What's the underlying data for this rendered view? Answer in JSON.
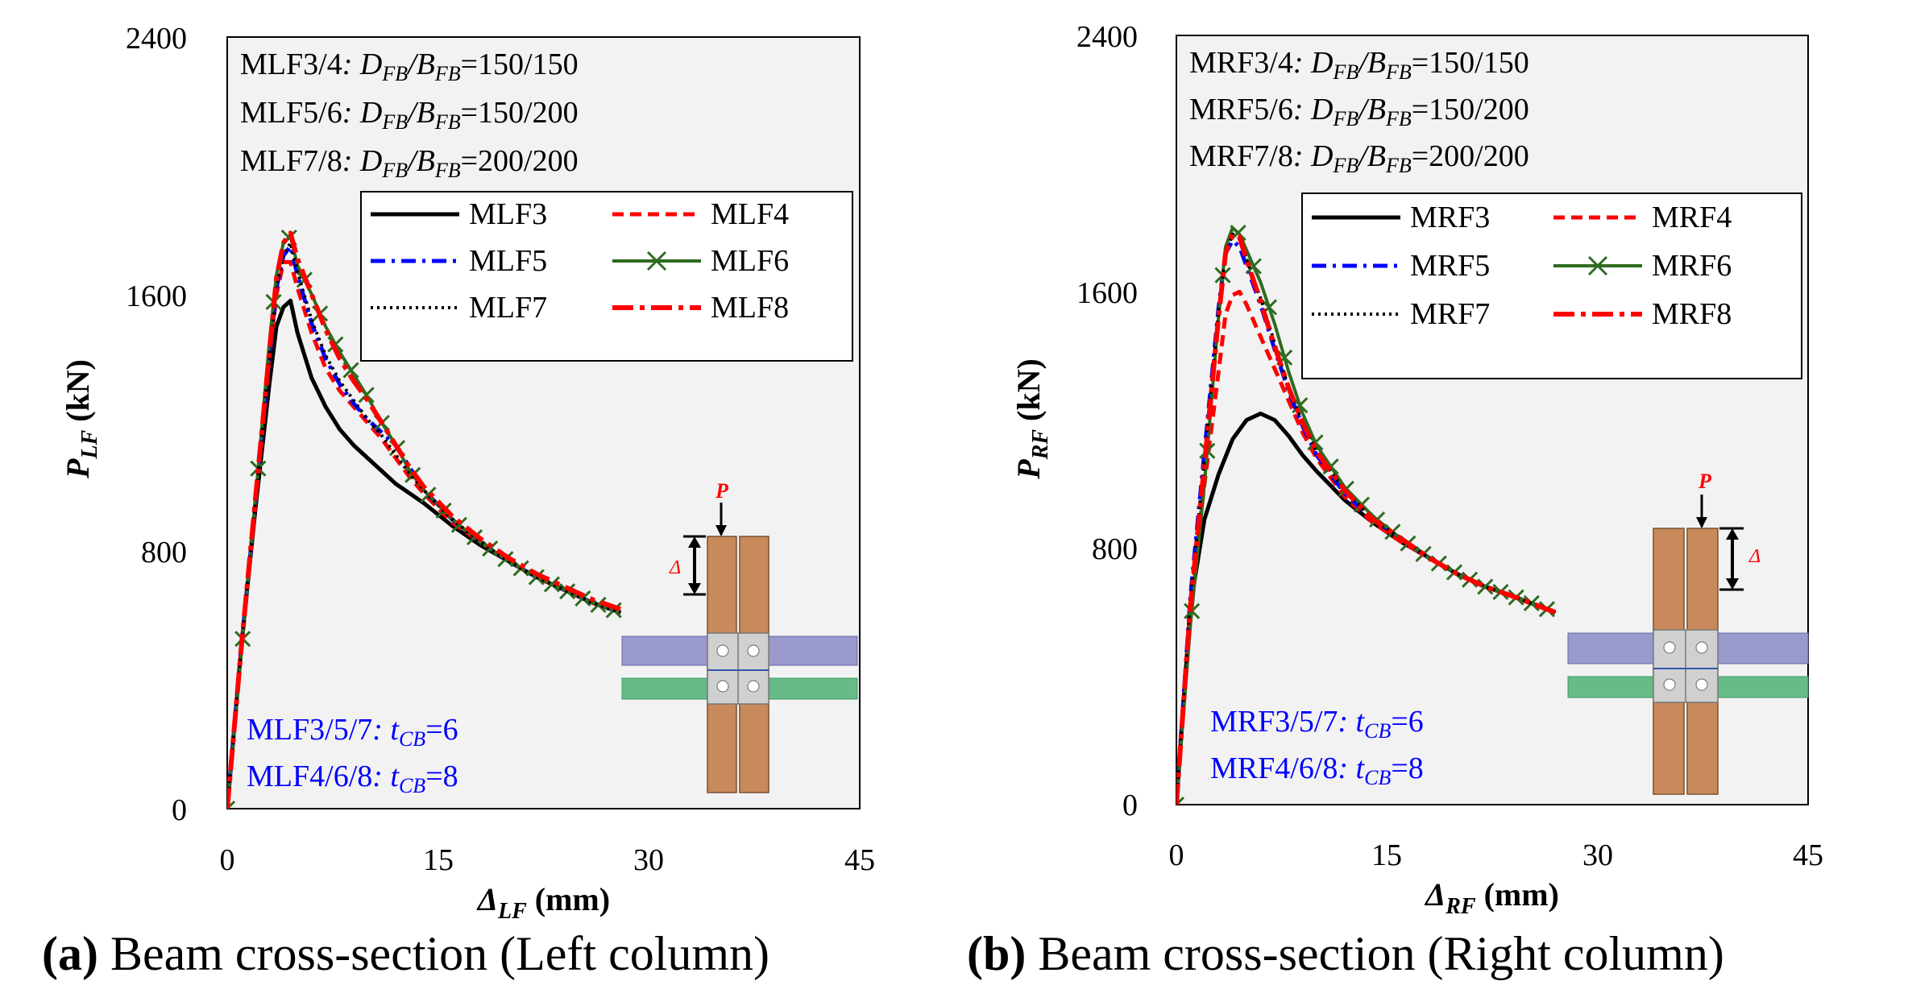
{
  "colors": {
    "black": "#000000",
    "red": "#ff0000",
    "blue": "#0000ff",
    "green": "#2e6b1f",
    "plot_bg": "#f2f2f2",
    "column": "#c98a5b",
    "beam_top": "#9999cc",
    "beam_bottom": "#66bb88",
    "plate": "#d0d0d0"
  },
  "captions": [
    {
      "label": "(a)",
      "text": " Beam cross-section (Left column)"
    },
    {
      "label": "(b)",
      "text": " Beam cross-section (Right column)"
    }
  ],
  "chart_data": [
    {
      "type": "line",
      "xlim": [
        0,
        45
      ],
      "ylim": [
        0,
        2400
      ],
      "xticks": [
        "0",
        "15",
        "30",
        "45"
      ],
      "yticks": [
        "0",
        "800",
        "1600",
        "2400"
      ],
      "xlabel": {
        "sym": "Δ",
        "sub": "LF",
        "unit": " (mm)"
      },
      "ylabel": {
        "sym": "P",
        "sub": "LF",
        "unit": " (kN)"
      },
      "info_lines": [
        {
          "name": "MLF3/4",
          "sep": ": ",
          "d": "D",
          "dsub": "FB",
          "slash": "/",
          "b": "B",
          "bsub": "FB",
          "val": "=150/150"
        },
        {
          "name": "MLF5/6",
          "sep": ": ",
          "d": "D",
          "dsub": "FB",
          "slash": "/",
          "b": "B",
          "bsub": "FB",
          "val": "=150/200"
        },
        {
          "name": "MLF7/8",
          "sep": ": ",
          "d": "D",
          "dsub": "FB",
          "slash": "/",
          "b": "B",
          "bsub": "FB",
          "val": "=200/200"
        }
      ],
      "thickness_lines": [
        {
          "name": "MLF3/5/7",
          "sep": ": ",
          "t": "t",
          "tsub": "CB",
          "val": "=6"
        },
        {
          "name": "MLF4/6/8",
          "sep": ": ",
          "t": "t",
          "tsub": "CB",
          "val": "=8"
        }
      ],
      "load_label": "P",
      "disp_label": "Δ",
      "series": [
        {
          "name": "MLF3",
          "style": "solid",
          "color": "black",
          "x": [
            0,
            1,
            2,
            3,
            3.5,
            4.0,
            4.5,
            5,
            6,
            7,
            8,
            9,
            10,
            11,
            12,
            13,
            14,
            16,
            18,
            20,
            22,
            24,
            26,
            28
          ],
          "y": [
            0,
            500,
            930,
            1320,
            1500,
            1560,
            1580,
            1480,
            1340,
            1250,
            1180,
            1130,
            1090,
            1050,
            1010,
            980,
            950,
            880,
            820,
            770,
            720,
            680,
            640,
            610
          ]
        },
        {
          "name": "MLF4",
          "style": "dashed",
          "color": "red",
          "x": [
            0,
            1,
            2,
            3,
            3.5,
            4.0,
            4.5,
            5,
            6,
            7,
            8,
            9,
            10,
            11,
            12,
            13,
            14,
            16,
            18,
            20,
            22,
            24,
            26,
            28
          ],
          "y": [
            0,
            500,
            950,
            1400,
            1600,
            1700,
            1700,
            1620,
            1480,
            1370,
            1300,
            1250,
            1200,
            1150,
            1090,
            1030,
            980,
            890,
            830,
            770,
            720,
            680,
            640,
            610
          ]
        },
        {
          "name": "MLF5",
          "style": "dashdot",
          "color": "blue",
          "x": [
            0,
            1,
            2,
            3,
            3.5,
            4.0,
            4.5,
            5,
            6,
            7,
            8,
            9,
            10,
            11,
            12,
            13,
            14,
            16,
            18,
            20,
            22,
            24,
            26,
            28
          ],
          "y": [
            0,
            500,
            950,
            1400,
            1620,
            1720,
            1750,
            1660,
            1510,
            1400,
            1320,
            1260,
            1210,
            1170,
            1130,
            1060,
            990,
            900,
            830,
            770,
            720,
            680,
            640,
            610
          ]
        },
        {
          "name": "MLF6",
          "style": "solid-x",
          "color": "green",
          "x": [
            0,
            1,
            2,
            3,
            3.5,
            4.0,
            4.5,
            5,
            6,
            7,
            8,
            9,
            10,
            11,
            12,
            13,
            14,
            16,
            18,
            20,
            22,
            24,
            26,
            28
          ],
          "y": [
            0,
            480,
            960,
            1450,
            1660,
            1760,
            1780,
            1690,
            1600,
            1500,
            1420,
            1350,
            1280,
            1200,
            1130,
            1050,
            990,
            900,
            830,
            770,
            720,
            680,
            640,
            610
          ]
        },
        {
          "name": "MLF7",
          "style": "dotted",
          "color": "black",
          "x": [
            0,
            1,
            2,
            3,
            3.5,
            4.0,
            4.5,
            5,
            6,
            7,
            8,
            9,
            10,
            11,
            12,
            13,
            14,
            16,
            18,
            20,
            22,
            24,
            26,
            28
          ],
          "y": [
            0,
            500,
            950,
            1400,
            1620,
            1720,
            1760,
            1670,
            1520,
            1410,
            1330,
            1270,
            1210,
            1160,
            1100,
            1040,
            990,
            900,
            830,
            770,
            720,
            680,
            640,
            610
          ]
        },
        {
          "name": "MLF8",
          "style": "longdashdot",
          "color": "red",
          "x": [
            0,
            1,
            2,
            3,
            3.5,
            4.0,
            4.5,
            5,
            6,
            7,
            8,
            9,
            10,
            11,
            12,
            13,
            14,
            16,
            18,
            20,
            22,
            24,
            26,
            28
          ],
          "y": [
            0,
            500,
            960,
            1420,
            1650,
            1760,
            1790,
            1710,
            1600,
            1490,
            1400,
            1330,
            1270,
            1200,
            1130,
            1060,
            1000,
            910,
            840,
            780,
            730,
            690,
            650,
            620
          ]
        }
      ]
    },
    {
      "type": "line",
      "xlim": [
        0,
        45
      ],
      "ylim": [
        0,
        2400
      ],
      "xticks": [
        "0",
        "15",
        "30",
        "45"
      ],
      "yticks": [
        "0",
        "800",
        "1600",
        "2400"
      ],
      "xlabel": {
        "sym": "Δ",
        "sub": "RF",
        "unit": " (mm)"
      },
      "ylabel": {
        "sym": "P",
        "sub": "RF",
        "unit": " (kN)"
      },
      "info_lines": [
        {
          "name": "MRF3/4",
          "sep": ": ",
          "d": "D",
          "dsub": "FB",
          "slash": "/",
          "b": "B",
          "bsub": "FB",
          "val": "=150/150"
        },
        {
          "name": "MRF5/6",
          "sep": ": ",
          "d": "D",
          "dsub": "FB",
          "slash": "/",
          "b": "B",
          "bsub": "FB",
          "val": "=150/200"
        },
        {
          "name": "MRF7/8",
          "sep": ": ",
          "d": "D",
          "dsub": "FB",
          "slash": "/",
          "b": "B",
          "bsub": "FB",
          "val": "=200/200"
        }
      ],
      "thickness_lines": [
        {
          "name": "MRF3/5/7",
          "sep": ": ",
          "t": "t",
          "tsub": "CB",
          "val": "=6"
        },
        {
          "name": "MRF4/6/8",
          "sep": ": ",
          "t": "t",
          "tsub": "CB",
          "val": "=8"
        }
      ],
      "load_label": "P",
      "disp_label": "Δ",
      "series": [
        {
          "name": "MRF3",
          "style": "solid",
          "color": "black",
          "x": [
            0,
            1,
            2,
            3,
            4,
            5,
            6,
            7,
            8,
            9,
            10,
            12,
            14,
            16,
            18,
            20,
            22,
            24,
            27
          ],
          "y": [
            0,
            620,
            890,
            1030,
            1140,
            1200,
            1220,
            1200,
            1150,
            1090,
            1040,
            950,
            880,
            820,
            770,
            720,
            680,
            650,
            600
          ]
        },
        {
          "name": "MRF4",
          "style": "dashed",
          "color": "red",
          "x": [
            0,
            1,
            2,
            3,
            3.5,
            4,
            4.5,
            5,
            6,
            7,
            8,
            9,
            10,
            12,
            14,
            16,
            18,
            20,
            22,
            24,
            27
          ],
          "y": [
            0,
            620,
            1000,
            1350,
            1530,
            1590,
            1600,
            1560,
            1460,
            1360,
            1260,
            1160,
            1080,
            960,
            880,
            820,
            770,
            720,
            680,
            650,
            600
          ]
        },
        {
          "name": "MRF5",
          "style": "dashdot",
          "color": "blue",
          "x": [
            0,
            1,
            2,
            3,
            3.5,
            4,
            4.5,
            5,
            6,
            7,
            8,
            9,
            10,
            12,
            14,
            16,
            18,
            20,
            22,
            24,
            27
          ],
          "y": [
            0,
            650,
            1100,
            1550,
            1720,
            1760,
            1740,
            1680,
            1560,
            1420,
            1290,
            1180,
            1090,
            970,
            890,
            830,
            770,
            720,
            680,
            650,
            600
          ]
        },
        {
          "name": "MRF6",
          "style": "solid-x",
          "color": "green",
          "x": [
            0,
            1,
            2,
            3,
            3.5,
            4,
            4.5,
            5,
            6,
            7,
            8,
            9,
            10,
            12,
            14,
            16,
            18,
            20,
            22,
            24,
            27
          ],
          "y": [
            0,
            560,
            1000,
            1520,
            1740,
            1800,
            1780,
            1730,
            1630,
            1500,
            1350,
            1220,
            1120,
            990,
            900,
            830,
            770,
            720,
            680,
            650,
            600
          ]
        },
        {
          "name": "MRF7",
          "style": "dotted",
          "color": "black",
          "x": [
            0,
            1,
            2,
            3,
            3.5,
            4,
            4.5,
            5,
            6,
            7,
            8,
            9,
            10,
            12,
            14,
            16,
            18,
            20,
            22,
            24,
            27
          ],
          "y": [
            0,
            640,
            1080,
            1540,
            1720,
            1780,
            1770,
            1700,
            1580,
            1440,
            1300,
            1190,
            1100,
            980,
            890,
            830,
            770,
            720,
            680,
            650,
            600
          ]
        },
        {
          "name": "MRF8",
          "style": "longdashdot",
          "color": "red",
          "x": [
            0,
            1,
            2,
            3,
            3.5,
            4,
            4.5,
            5,
            6,
            7,
            8,
            9,
            10,
            12,
            14,
            16,
            18,
            20,
            22,
            24,
            27
          ],
          "y": [
            0,
            620,
            1060,
            1520,
            1720,
            1780,
            1770,
            1700,
            1570,
            1430,
            1300,
            1190,
            1100,
            980,
            890,
            830,
            770,
            720,
            680,
            650,
            600
          ]
        }
      ]
    }
  ]
}
